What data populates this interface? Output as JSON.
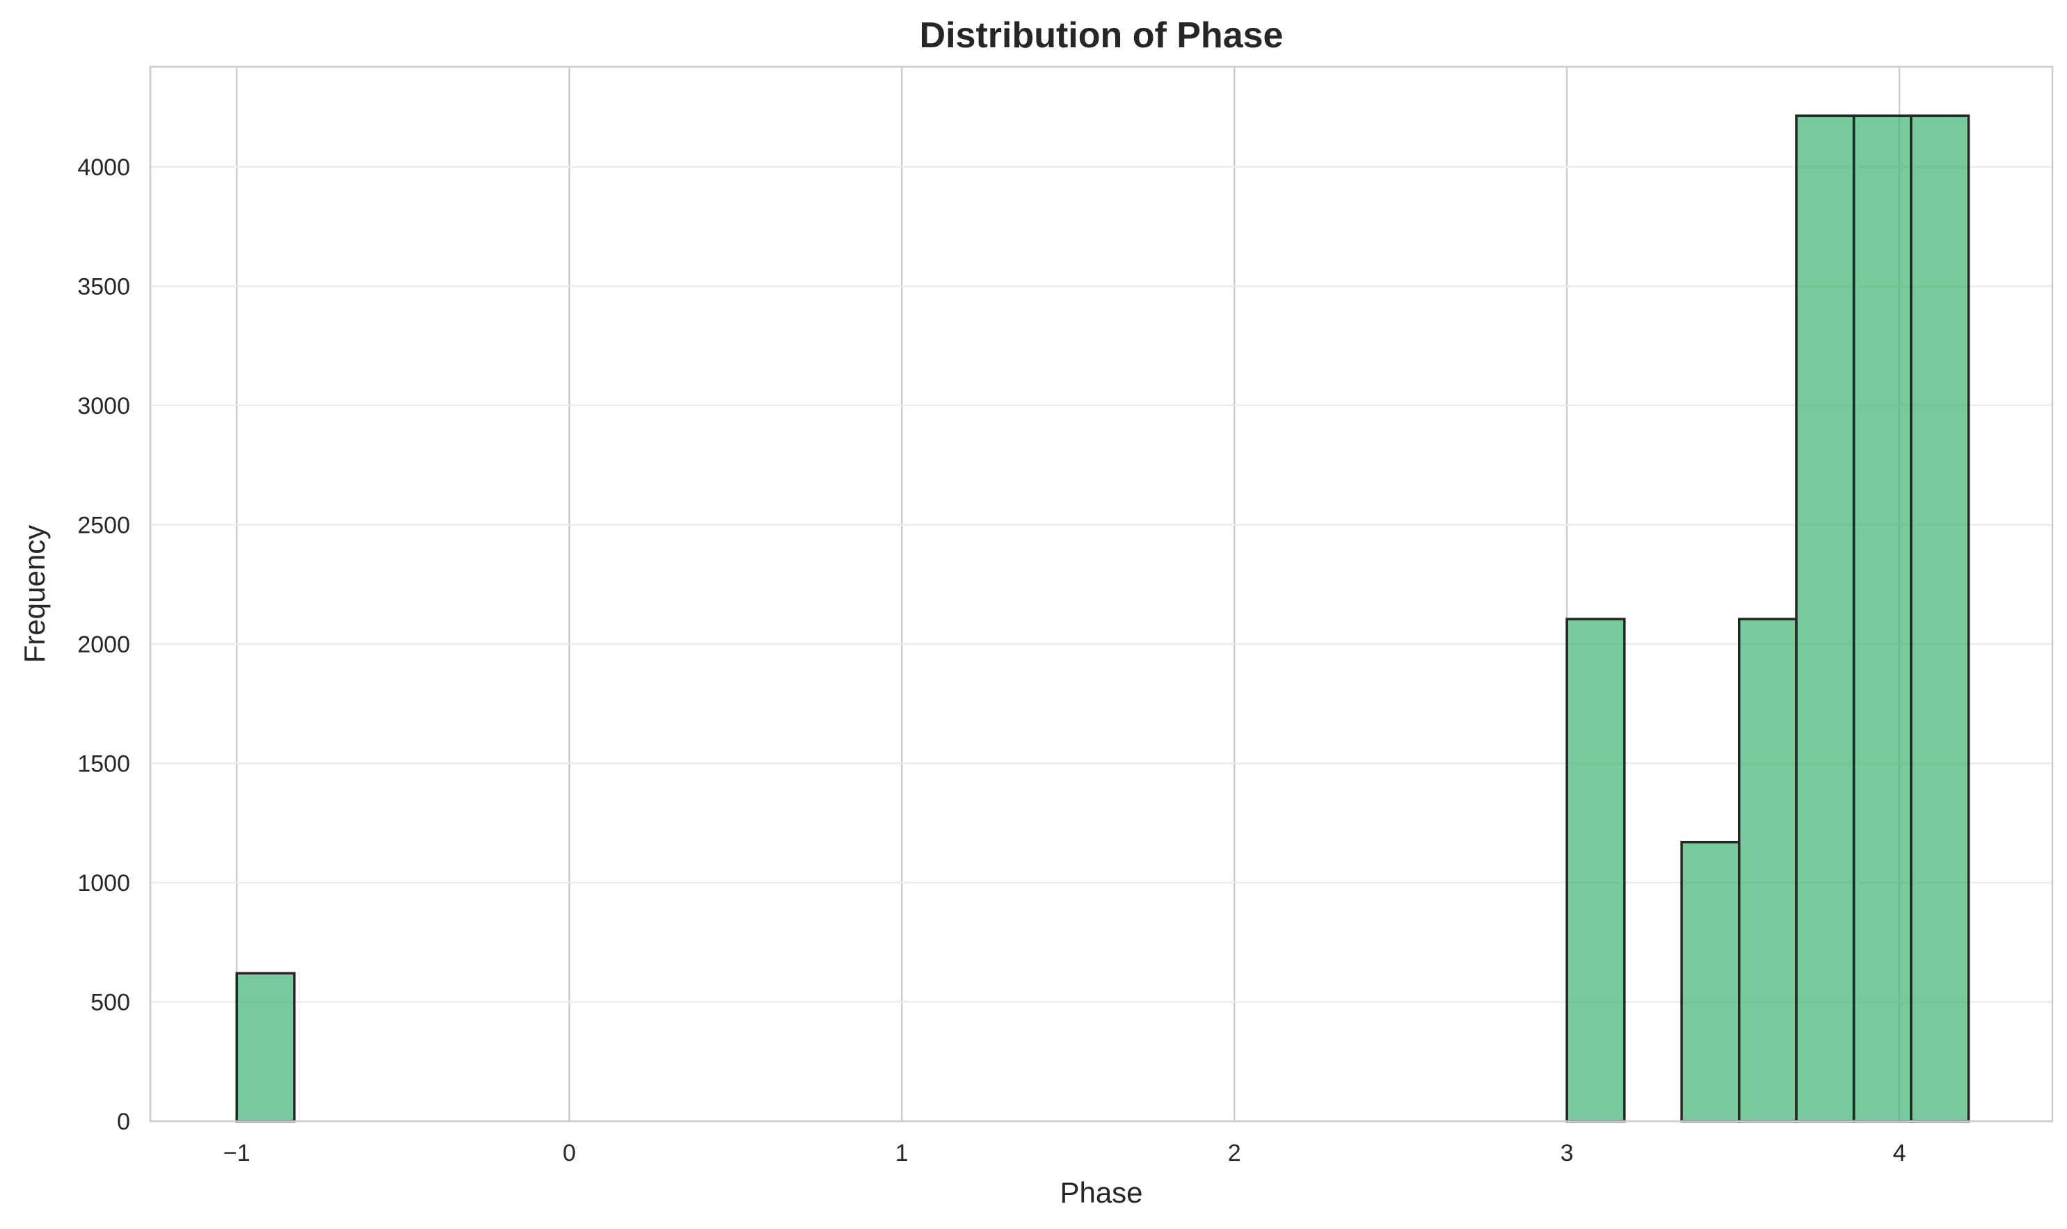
{
  "chart_data": {
    "type": "bar",
    "title": "Distribution of Phase",
    "xlabel": "Phase",
    "ylabel": "Frequency",
    "xlim": [
      -1.26,
      4.46
    ],
    "ylim": [
      0,
      4420
    ],
    "x_ticks": [
      {
        "value": -1,
        "label": "−1"
      },
      {
        "value": 0,
        "label": "0"
      },
      {
        "value": 1,
        "label": "1"
      },
      {
        "value": 2,
        "label": "2"
      },
      {
        "value": 3,
        "label": "3"
      },
      {
        "value": 4,
        "label": "4"
      }
    ],
    "y_ticks": [
      {
        "value": 0,
        "label": "0"
      },
      {
        "value": 500,
        "label": "500"
      },
      {
        "value": 1000,
        "label": "1000"
      },
      {
        "value": 1500,
        "label": "1500"
      },
      {
        "value": 2000,
        "label": "2000"
      },
      {
        "value": 2500,
        "label": "2500"
      },
      {
        "value": 3000,
        "label": "3000"
      },
      {
        "value": 3500,
        "label": "3500"
      },
      {
        "value": 4000,
        "label": "4000"
      }
    ],
    "grid": true,
    "bar_color": "#3cb371",
    "edge_color": "#262626",
    "bins": [
      {
        "x0": -1.0,
        "x1": -0.827,
        "value": 620
      },
      {
        "x0": 3.0,
        "x1": 3.173,
        "value": 2105
      },
      {
        "x0": 3.345,
        "x1": 3.518,
        "value": 1170
      },
      {
        "x0": 3.518,
        "x1": 3.69,
        "value": 2105
      },
      {
        "x0": 3.69,
        "x1": 3.863,
        "value": 4215
      },
      {
        "x0": 3.863,
        "x1": 4.035,
        "value": 4215
      },
      {
        "x0": 4.035,
        "x1": 4.208,
        "value": 4215
      }
    ]
  }
}
